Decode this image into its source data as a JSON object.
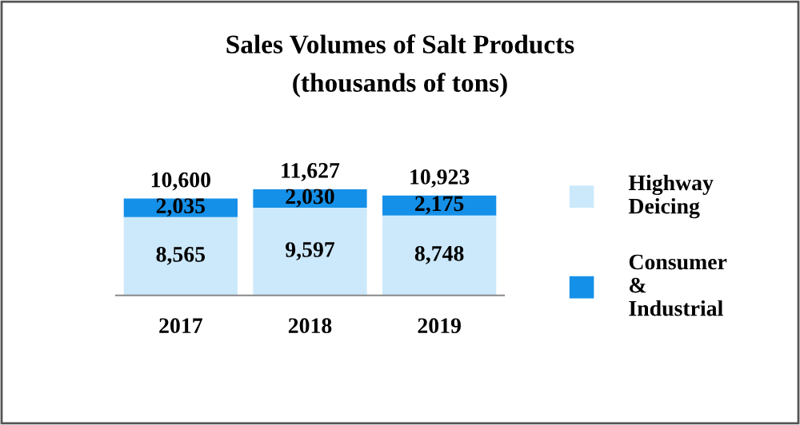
{
  "chart_data": {
    "type": "bar",
    "title": "Sales Volumes of Salt Products",
    "subtitle": "(thousands of tons)",
    "categories": [
      "2017",
      "2018",
      "2019"
    ],
    "stacked": true,
    "legend": "right",
    "grid": false,
    "tick_labels": "x",
    "series": [
      {
        "name": "Highway Deicing",
        "color": "#cce9fb",
        "values": [
          8565,
          9597,
          8748
        ],
        "value_labels": [
          "8,565",
          "9,597",
          "8,748"
        ]
      },
      {
        "name": "Consumer & Industrial",
        "color": "#1590e8",
        "values": [
          2035,
          2030,
          2175
        ],
        "value_labels": [
          "2,035",
          "2,030",
          "2,175"
        ]
      }
    ],
    "totals": [
      "10,600",
      "11,627",
      "10,923"
    ]
  }
}
